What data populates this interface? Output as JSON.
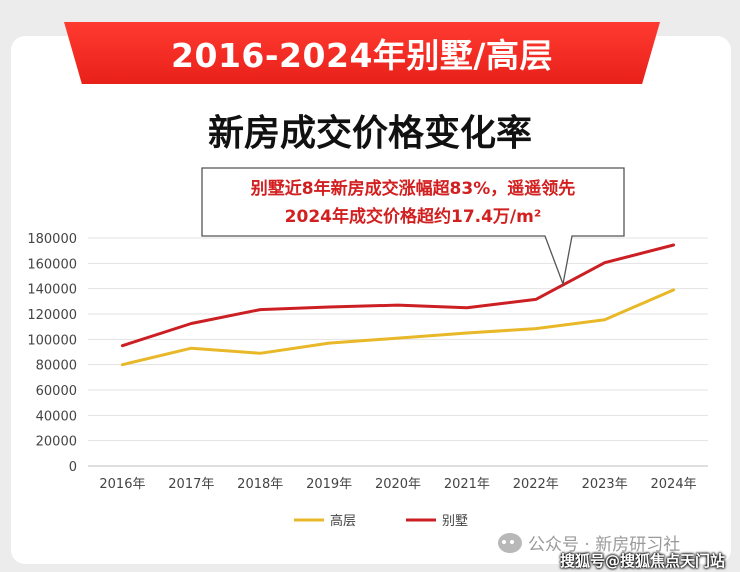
{
  "banner": {
    "text": "2016-2024年别墅/高层"
  },
  "chart_data": {
    "type": "line",
    "title": "新房成交价格变化率",
    "categories": [
      "2016年",
      "2017年",
      "2018年",
      "2019年",
      "2020年",
      "2021年",
      "2022年",
      "2023年",
      "2024年"
    ],
    "series": [
      {
        "name": "高层",
        "color": "#e8b828",
        "values": [
          80000,
          93000,
          89000,
          97000,
          101000,
          105000,
          108500,
          115500,
          139000
        ]
      },
      {
        "name": "别墅",
        "color": "#cc1f24",
        "values": [
          95000,
          112500,
          123500,
          125500,
          127000,
          125000,
          131500,
          160500,
          174500
        ]
      }
    ],
    "ylim": [
      0,
      180000
    ],
    "yticks": [
      "0",
      "20000",
      "40000",
      "60000",
      "80000",
      "100000",
      "120000",
      "140000",
      "160000",
      "180000"
    ],
    "grid": true,
    "legend": "bottom",
    "annotation": {
      "line1": "别墅近8年新房成交涨幅超83%，遥遥领先",
      "line2": "2024年成交价格超约17.4万/m²"
    }
  },
  "watermark": {
    "text": "公众号 · 新房研习社",
    "source": "搜狐号@搜狐焦点天门站"
  }
}
